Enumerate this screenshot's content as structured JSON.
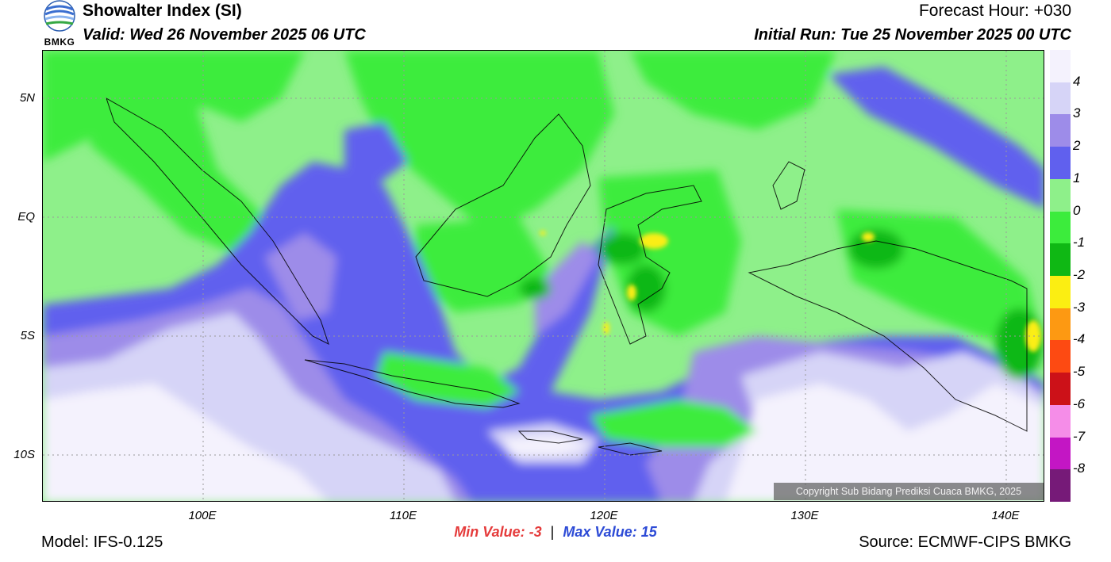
{
  "header": {
    "title": "Showalter Index (SI)",
    "valid": "Valid: Wed 26 November 2025 06 UTC",
    "forecast_hour": "Forecast Hour: +030",
    "initial_run": "Initial Run: Tue 25 November 2025 00 UTC",
    "logo_text": "BMKG"
  },
  "map": {
    "lon_ticks": [
      "100E",
      "110E",
      "120E",
      "130E",
      "140E"
    ],
    "lat_ticks": [
      "5N",
      "EQ",
      "5S",
      "10S"
    ],
    "lon_range": [
      92,
      142
    ],
    "lat_range": [
      -12,
      7
    ]
  },
  "legend": {
    "labels": [
      "4",
      "3",
      "2",
      "1",
      "0",
      "-1",
      "-2",
      "-3",
      "-4",
      "-5",
      "-6",
      "-7",
      "-8"
    ],
    "colors": [
      "#f4f2fd",
      "#d6d4f7",
      "#9d8ce9",
      "#6060ee",
      "#8ef08a",
      "#3cec3c",
      "#0fb814",
      "#fbee12",
      "#fd9912",
      "#fd4a12",
      "#cc1118",
      "#f58de8",
      "#c316c4",
      "#761a78"
    ]
  },
  "footer": {
    "min_label": "Min Value:",
    "min_value": "-3",
    "max_label": "Max Value:",
    "max_value": "15",
    "model": "Model: IFS-0.125",
    "source": "Source: ECMWF-CIPS BMKG",
    "copyright": "Copyright Sub Bidang Prediksi Cuaca BMKG, 2025"
  }
}
